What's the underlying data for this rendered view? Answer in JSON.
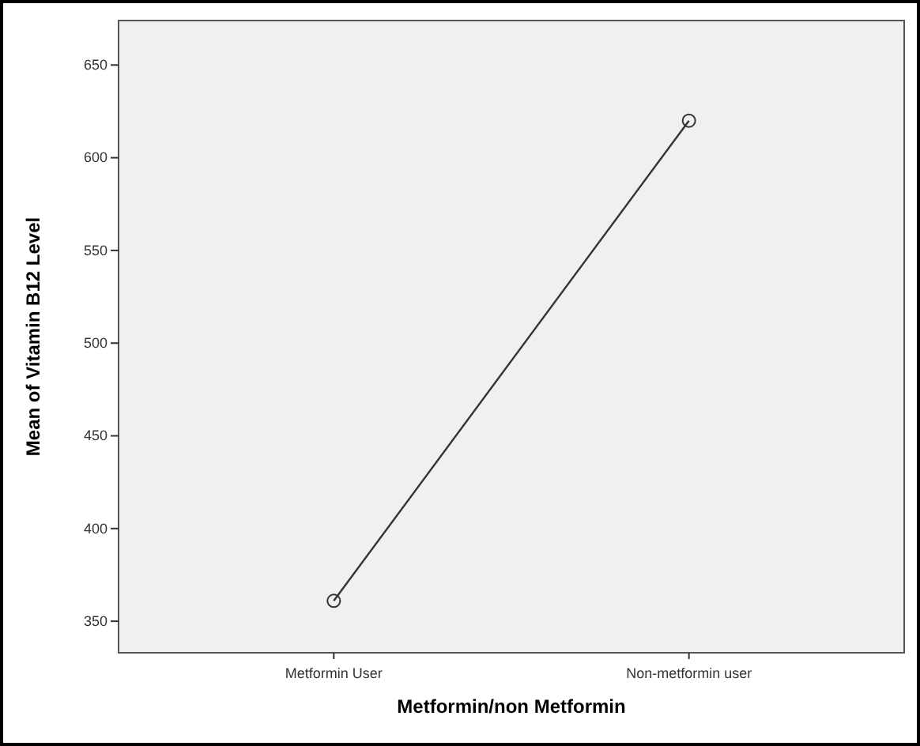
{
  "chart_data": {
    "type": "line",
    "xlabel": "Metformin/non Metformin",
    "ylabel": "Mean of Vitamin B12 Level",
    "categories": [
      "Metformin User",
      "Non-metformin user"
    ],
    "series": [
      {
        "color": "#333333",
        "values": [
          361,
          620
        ]
      }
    ],
    "ylim": [
      333,
      674
    ],
    "yticks": [
      350,
      400,
      450,
      500,
      550,
      600,
      650
    ],
    "marker": "circle",
    "grid": false
  }
}
